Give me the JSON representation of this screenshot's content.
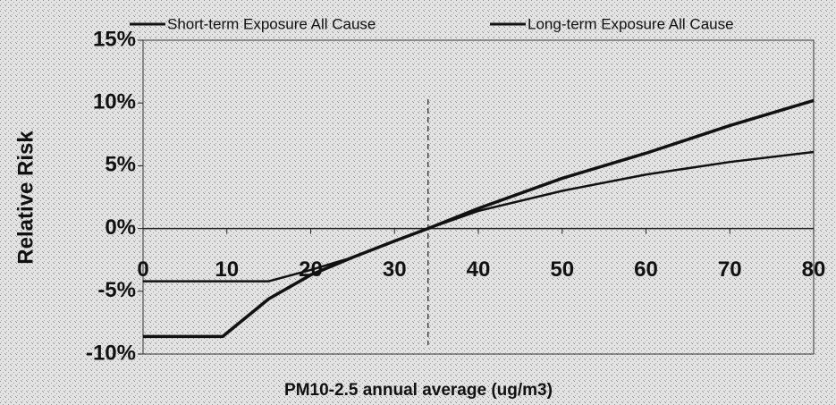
{
  "chart_data": {
    "type": "line",
    "x_label": "PM10-2.5 annual average (ug/m3)",
    "y_label": "Relative Risk",
    "xlim": [
      0,
      80
    ],
    "xticks": [
      0,
      10,
      20,
      30,
      40,
      50,
      60,
      70,
      80
    ],
    "ylim": [
      -10,
      15
    ],
    "yticks": [
      {
        "value": -10,
        "label": "-10%"
      },
      {
        "value": -5,
        "label": "-5%"
      },
      {
        "value": 0,
        "label": "0%"
      },
      {
        "value": 5,
        "label": "5%"
      },
      {
        "value": 10,
        "label": "10%"
      },
      {
        "value": 15,
        "label": "15%"
      }
    ],
    "reference_x": 34,
    "series": [
      {
        "name": "Short-term Exposure All Cause",
        "color": "#111111",
        "x": [
          0,
          15,
          20,
          25,
          30,
          34,
          40,
          50,
          60,
          70,
          80
        ],
        "values": [
          -4.2,
          -4.2,
          -3.3,
          -2.3,
          -1.0,
          0,
          1.4,
          3.0,
          4.3,
          5.3,
          6.1
        ]
      },
      {
        "name": "Long-term Exposure All Cause",
        "color": "#111111",
        "x": [
          0,
          9.5,
          15,
          20,
          25,
          30,
          34,
          40,
          50,
          60,
          70,
          80
        ],
        "values": [
          -8.6,
          -8.6,
          -5.6,
          -3.7,
          -2.3,
          -1.0,
          0,
          1.6,
          4.0,
          6.0,
          8.2,
          10.2
        ]
      }
    ]
  }
}
